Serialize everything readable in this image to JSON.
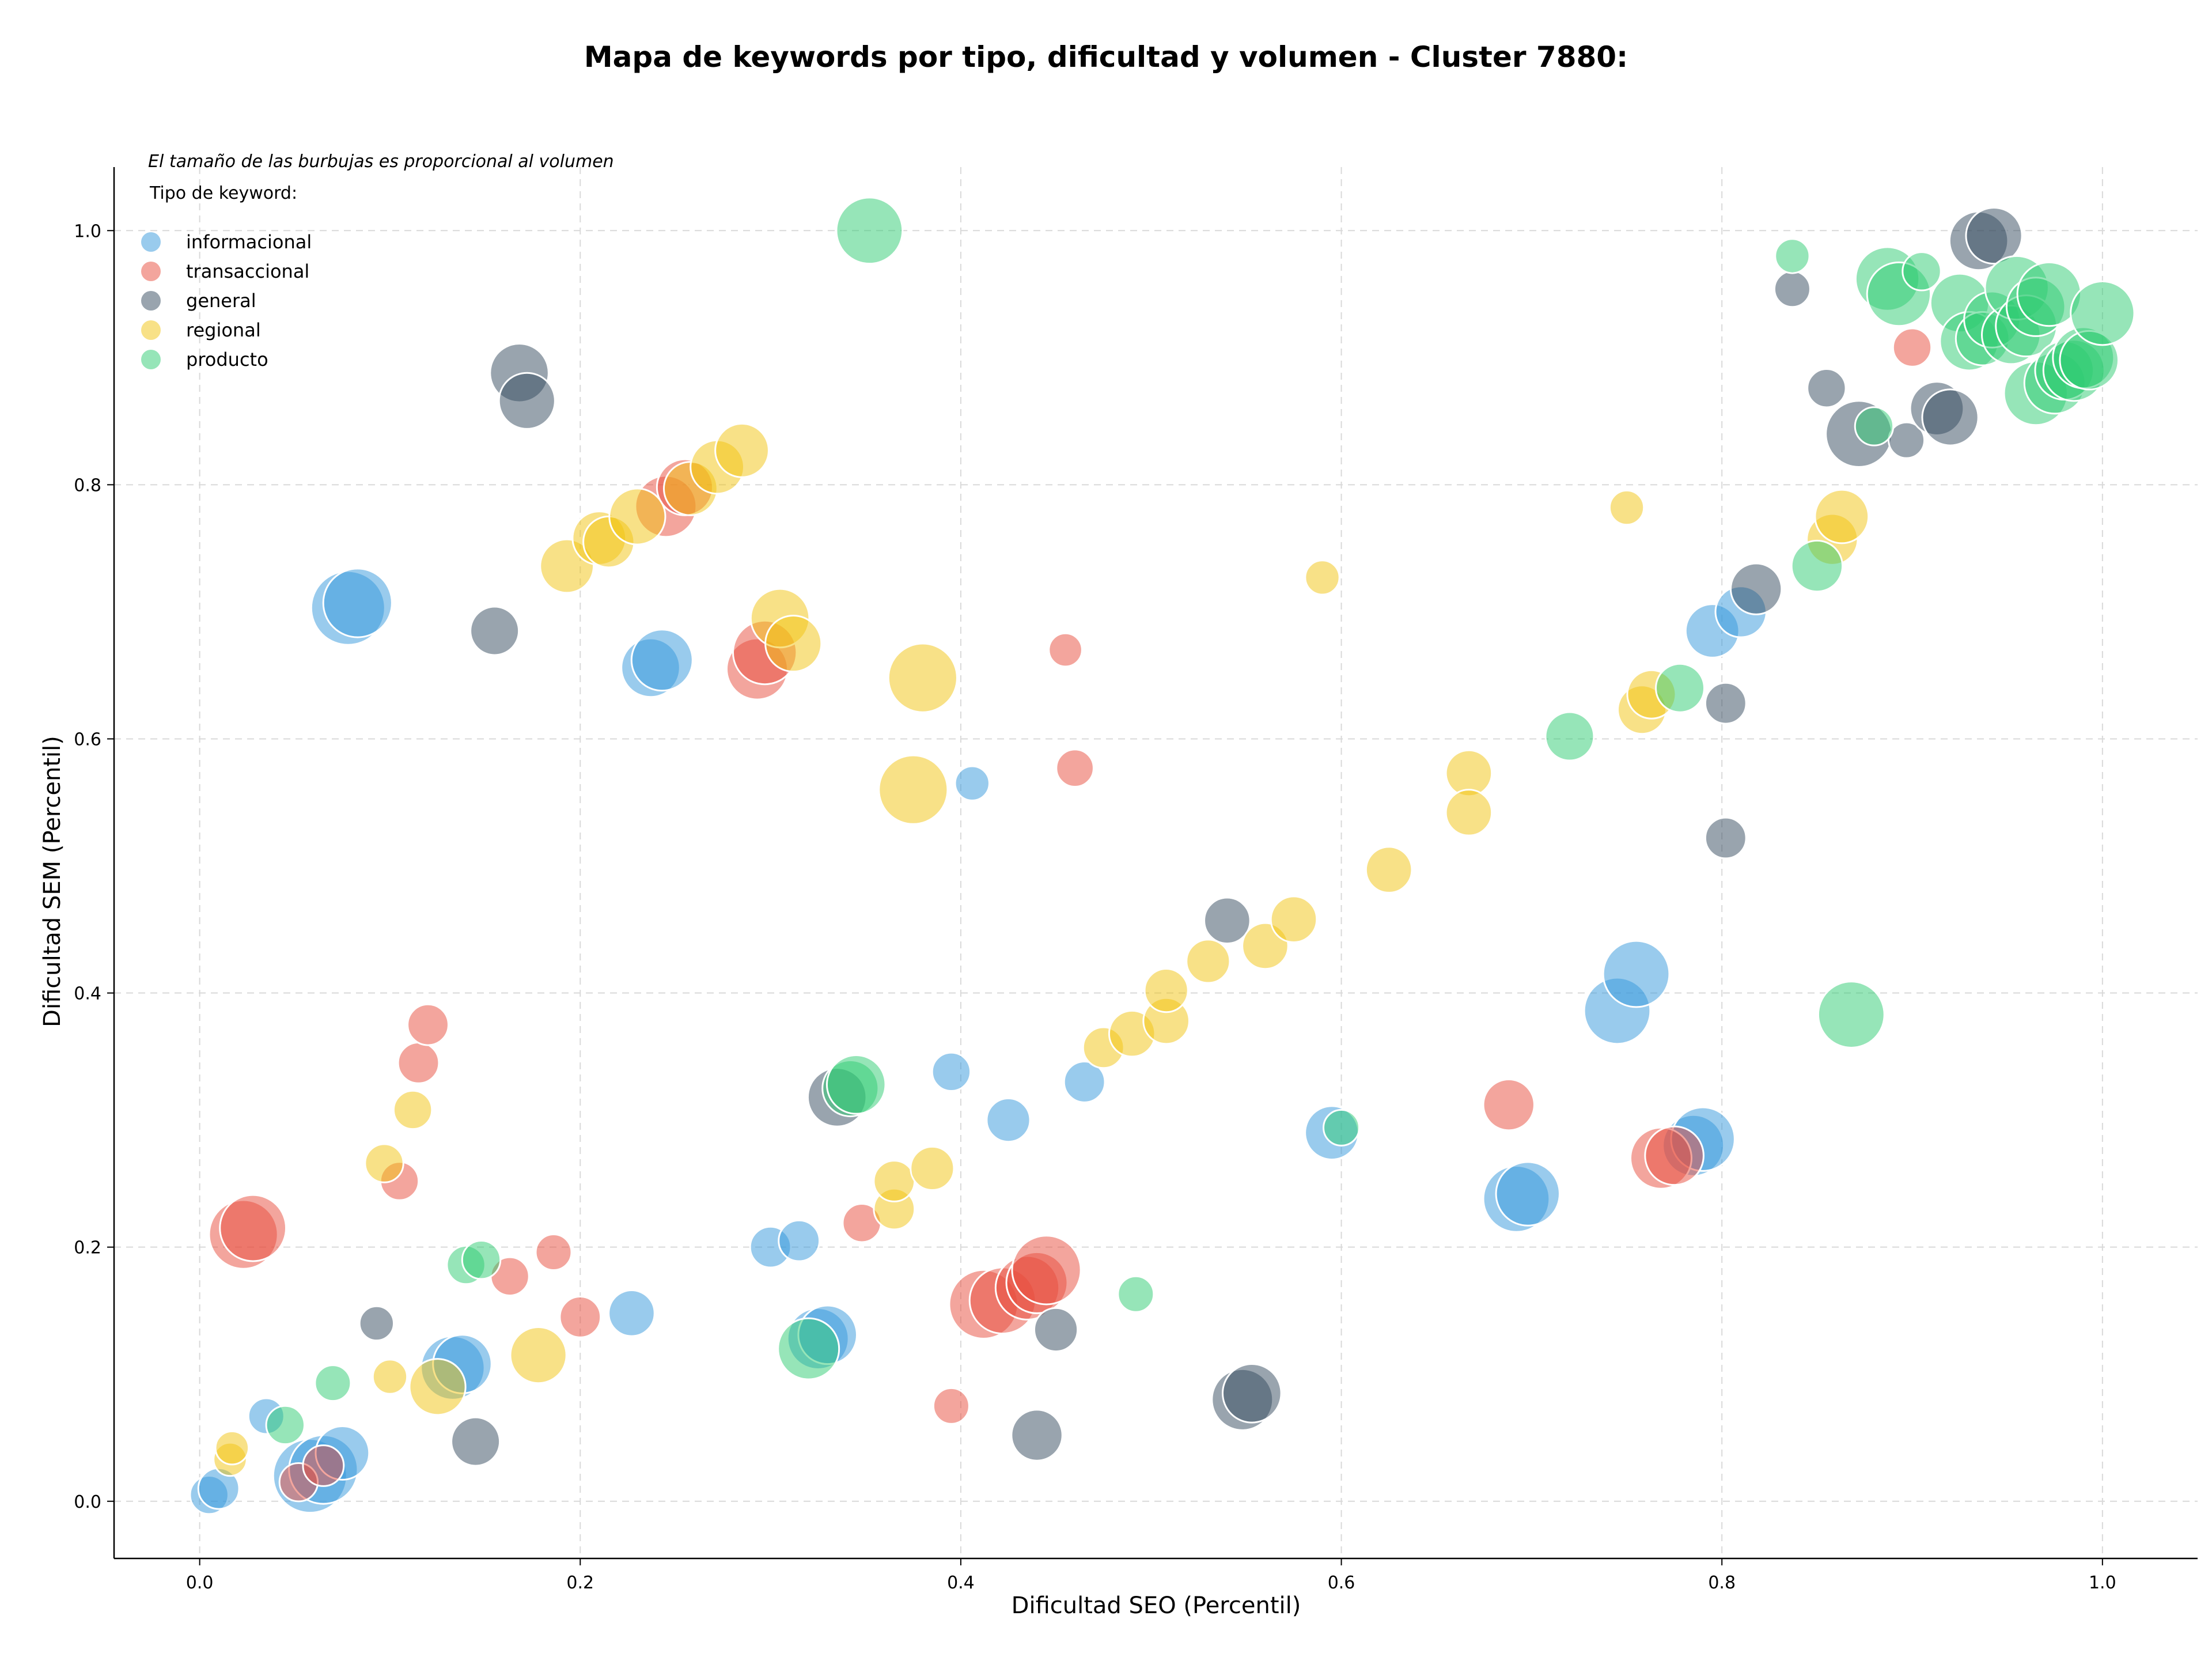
{
  "chart_data": {
    "type": "scatter",
    "title": "Mapa de keywords por tipo, dificultad y volumen - Cluster 7880:",
    "xlabel": "Dificultad SEO (Percentil)",
    "ylabel": "Dificultad SEM (Percentil)",
    "note": "El tamaño de las burbujas es proporcional al volumen",
    "legend_title": "Tipo de keyword:",
    "legend_placement": "top-left",
    "grid": true,
    "xlim": [
      -0.045,
      1.05
    ],
    "ylim": [
      -0.045,
      1.05
    ],
    "xticks": [
      "0.0",
      "0.2",
      "0.4",
      "0.6",
      "0.8",
      "1.0"
    ],
    "yticks": [
      "0.0",
      "0.2",
      "0.4",
      "0.6",
      "0.8",
      "1.0"
    ],
    "series": [
      {
        "name": "informacional",
        "color": "#3498db",
        "points": [
          [
            0.005,
            0.005,
            0.3
          ],
          [
            0.01,
            0.01,
            0.35
          ],
          [
            0.035,
            0.067,
            0.25
          ],
          [
            0.058,
            0.02,
            1.0
          ],
          [
            0.065,
            0.025,
            0.9
          ],
          [
            0.075,
            0.038,
            0.6
          ],
          [
            0.078,
            0.703,
            1.0
          ],
          [
            0.083,
            0.707,
            0.9
          ],
          [
            0.133,
            0.105,
            0.8
          ],
          [
            0.138,
            0.108,
            0.7
          ],
          [
            0.227,
            0.148,
            0.45
          ],
          [
            0.237,
            0.656,
            0.7
          ],
          [
            0.243,
            0.662,
            0.75
          ],
          [
            0.3,
            0.2,
            0.35
          ],
          [
            0.315,
            0.205,
            0.35
          ],
          [
            0.325,
            0.128,
            0.75
          ],
          [
            0.33,
            0.131,
            0.7
          ],
          [
            0.395,
            0.338,
            0.3
          ],
          [
            0.406,
            0.565,
            0.22
          ],
          [
            0.425,
            0.3,
            0.4
          ],
          [
            0.465,
            0.33,
            0.35
          ],
          [
            0.595,
            0.29,
            0.6
          ],
          [
            0.692,
            0.238,
            0.85
          ],
          [
            0.698,
            0.242,
            0.8
          ],
          [
            0.745,
            0.386,
            0.85
          ],
          [
            0.755,
            0.415,
            0.85
          ],
          [
            0.785,
            0.28,
            0.75
          ],
          [
            0.79,
            0.285,
            0.8
          ],
          [
            0.795,
            0.685,
            0.6
          ],
          [
            0.81,
            0.7,
            0.55
          ]
        ]
      },
      {
        "name": "transaccional",
        "color": "#e74c3c",
        "points": [
          [
            0.023,
            0.21,
            0.9
          ],
          [
            0.028,
            0.215,
            0.85
          ],
          [
            0.052,
            0.015,
            0.3
          ],
          [
            0.065,
            0.028,
            0.35
          ],
          [
            0.105,
            0.252,
            0.3
          ],
          [
            0.115,
            0.345,
            0.35
          ],
          [
            0.12,
            0.375,
            0.35
          ],
          [
            0.163,
            0.177,
            0.3
          ],
          [
            0.186,
            0.196,
            0.25
          ],
          [
            0.2,
            0.145,
            0.35
          ],
          [
            0.245,
            0.783,
            0.75
          ],
          [
            0.255,
            0.798,
            0.65
          ],
          [
            0.293,
            0.655,
            0.75
          ],
          [
            0.297,
            0.668,
            0.8
          ],
          [
            0.348,
            0.219,
            0.3
          ],
          [
            0.395,
            0.075,
            0.25
          ],
          [
            0.412,
            0.155,
            0.9
          ],
          [
            0.422,
            0.158,
            0.85
          ],
          [
            0.435,
            0.168,
            0.8
          ],
          [
            0.44,
            0.172,
            0.75
          ],
          [
            0.445,
            0.182,
            0.9
          ],
          [
            0.455,
            0.67,
            0.2
          ],
          [
            0.46,
            0.577,
            0.28
          ],
          [
            0.688,
            0.312,
            0.55
          ],
          [
            0.768,
            0.27,
            0.75
          ],
          [
            0.775,
            0.272,
            0.7
          ],
          [
            0.9,
            0.908,
            0.3
          ]
        ]
      },
      {
        "name": "general",
        "color": "#34495e",
        "points": [
          [
            0.093,
            0.14,
            0.22
          ],
          [
            0.145,
            0.047,
            0.5
          ],
          [
            0.155,
            0.685,
            0.5
          ],
          [
            0.168,
            0.888,
            0.7
          ],
          [
            0.172,
            0.866,
            0.65
          ],
          [
            0.335,
            0.318,
            0.7
          ],
          [
            0.44,
            0.052,
            0.55
          ],
          [
            0.45,
            0.135,
            0.4
          ],
          [
            0.54,
            0.457,
            0.45
          ],
          [
            0.548,
            0.08,
            0.75
          ],
          [
            0.553,
            0.085,
            0.7
          ],
          [
            0.802,
            0.522,
            0.35
          ],
          [
            0.802,
            0.628,
            0.35
          ],
          [
            0.818,
            0.718,
            0.55
          ],
          [
            0.837,
            0.954,
            0.25
          ],
          [
            0.855,
            0.876,
            0.3
          ],
          [
            0.872,
            0.84,
            0.85
          ],
          [
            0.897,
            0.835,
            0.25
          ],
          [
            0.913,
            0.86,
            0.6
          ],
          [
            0.92,
            0.853,
            0.65
          ],
          [
            0.935,
            0.992,
            0.7
          ],
          [
            0.943,
            0.996,
            0.65
          ]
        ]
      },
      {
        "name": "regional",
        "color": "#f1c40f",
        "points": [
          [
            0.016,
            0.033,
            0.2
          ],
          [
            0.017,
            0.042,
            0.2
          ],
          [
            0.1,
            0.098,
            0.22
          ],
          [
            0.097,
            0.266,
            0.3
          ],
          [
            0.112,
            0.308,
            0.3
          ],
          [
            0.125,
            0.09,
            0.65
          ],
          [
            0.178,
            0.115,
            0.65
          ],
          [
            0.193,
            0.736,
            0.6
          ],
          [
            0.21,
            0.758,
            0.6
          ],
          [
            0.215,
            0.755,
            0.55
          ],
          [
            0.23,
            0.775,
            0.65
          ],
          [
            0.258,
            0.797,
            0.6
          ],
          [
            0.272,
            0.814,
            0.6
          ],
          [
            0.285,
            0.827,
            0.6
          ],
          [
            0.305,
            0.695,
            0.7
          ],
          [
            0.312,
            0.675,
            0.65
          ],
          [
            0.365,
            0.23,
            0.35
          ],
          [
            0.365,
            0.252,
            0.35
          ],
          [
            0.375,
            0.56,
            0.9
          ],
          [
            0.38,
            0.648,
            0.9
          ],
          [
            0.385,
            0.262,
            0.4
          ],
          [
            0.475,
            0.357,
            0.35
          ],
          [
            0.49,
            0.368,
            0.45
          ],
          [
            0.508,
            0.378,
            0.45
          ],
          [
            0.508,
            0.402,
            0.4
          ],
          [
            0.53,
            0.425,
            0.4
          ],
          [
            0.56,
            0.437,
            0.45
          ],
          [
            0.575,
            0.458,
            0.45
          ],
          [
            0.59,
            0.727,
            0.22
          ],
          [
            0.625,
            0.497,
            0.45
          ],
          [
            0.667,
            0.573,
            0.45
          ],
          [
            0.667,
            0.542,
            0.45
          ],
          [
            0.75,
            0.782,
            0.22
          ],
          [
            0.758,
            0.623,
            0.5
          ],
          [
            0.763,
            0.635,
            0.5
          ],
          [
            0.858,
            0.757,
            0.55
          ],
          [
            0.863,
            0.775,
            0.6
          ]
        ]
      },
      {
        "name": "producto",
        "color": "#2ecc71",
        "points": [
          [
            0.045,
            0.06,
            0.3
          ],
          [
            0.07,
            0.093,
            0.25
          ],
          [
            0.14,
            0.186,
            0.3
          ],
          [
            0.148,
            0.19,
            0.3
          ],
          [
            0.32,
            0.12,
            0.75
          ],
          [
            0.342,
            0.325,
            0.65
          ],
          [
            0.345,
            0.328,
            0.7
          ],
          [
            0.352,
            1.0,
            0.85
          ],
          [
            0.492,
            0.163,
            0.25
          ],
          [
            0.6,
            0.294,
            0.25
          ],
          [
            0.72,
            0.602,
            0.5
          ],
          [
            0.778,
            0.64,
            0.5
          ],
          [
            0.837,
            0.98,
            0.22
          ],
          [
            0.85,
            0.736,
            0.55
          ],
          [
            0.868,
            0.383,
            0.85
          ],
          [
            0.88,
            0.846,
            0.3
          ],
          [
            0.887,
            0.962,
            0.8
          ],
          [
            0.893,
            0.95,
            0.8
          ],
          [
            0.905,
            0.968,
            0.3
          ],
          [
            0.925,
            0.943,
            0.7
          ],
          [
            0.93,
            0.913,
            0.7
          ],
          [
            0.937,
            0.915,
            0.6
          ],
          [
            0.942,
            0.93,
            0.65
          ],
          [
            0.952,
            0.918,
            0.7
          ],
          [
            0.955,
            0.955,
            0.8
          ],
          [
            0.96,
            0.925,
            0.75
          ],
          [
            0.965,
            0.94,
            0.7
          ],
          [
            0.965,
            0.872,
            0.8
          ],
          [
            0.972,
            0.95,
            0.8
          ],
          [
            0.975,
            0.88,
            0.75
          ],
          [
            0.98,
            0.89,
            0.7
          ],
          [
            0.985,
            0.89,
            0.75
          ],
          [
            0.99,
            0.9,
            0.75
          ],
          [
            0.993,
            0.898,
            0.7
          ],
          [
            1.0,
            0.935,
            0.8
          ]
        ]
      }
    ]
  }
}
